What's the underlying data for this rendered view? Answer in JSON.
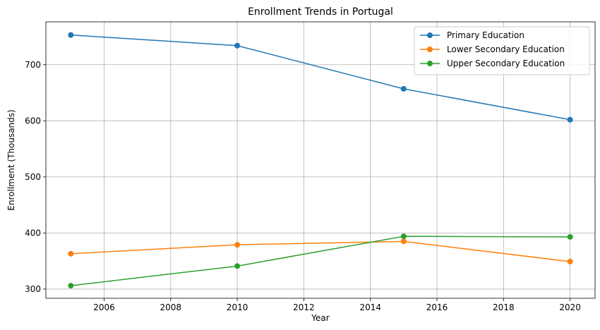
{
  "chart_data": {
    "type": "line",
    "title": "Enrollment Trends in Portugal",
    "xlabel": "Year",
    "ylabel": "Enrollment (Thousands)",
    "x": [
      2005,
      2010,
      2015,
      2020
    ],
    "xlim": [
      2004.25,
      2020.75
    ],
    "ylim": [
      283.6,
      776.4
    ],
    "xticks": [
      2006,
      2008,
      2010,
      2012,
      2014,
      2016,
      2018,
      2020
    ],
    "yticks": [
      300,
      400,
      500,
      600,
      700
    ],
    "grid": true,
    "legend_position": "top-right",
    "series": [
      {
        "name": "Primary Education",
        "color": "#1f77b4",
        "values": [
          753,
          734,
          657,
          602
        ]
      },
      {
        "name": "Lower Secondary Education",
        "color": "#ff7f0e",
        "values": [
          363,
          379,
          385,
          349
        ]
      },
      {
        "name": "Upper Secondary Education",
        "color": "#2ca02c",
        "values": [
          306,
          341,
          394,
          393
        ]
      }
    ]
  }
}
